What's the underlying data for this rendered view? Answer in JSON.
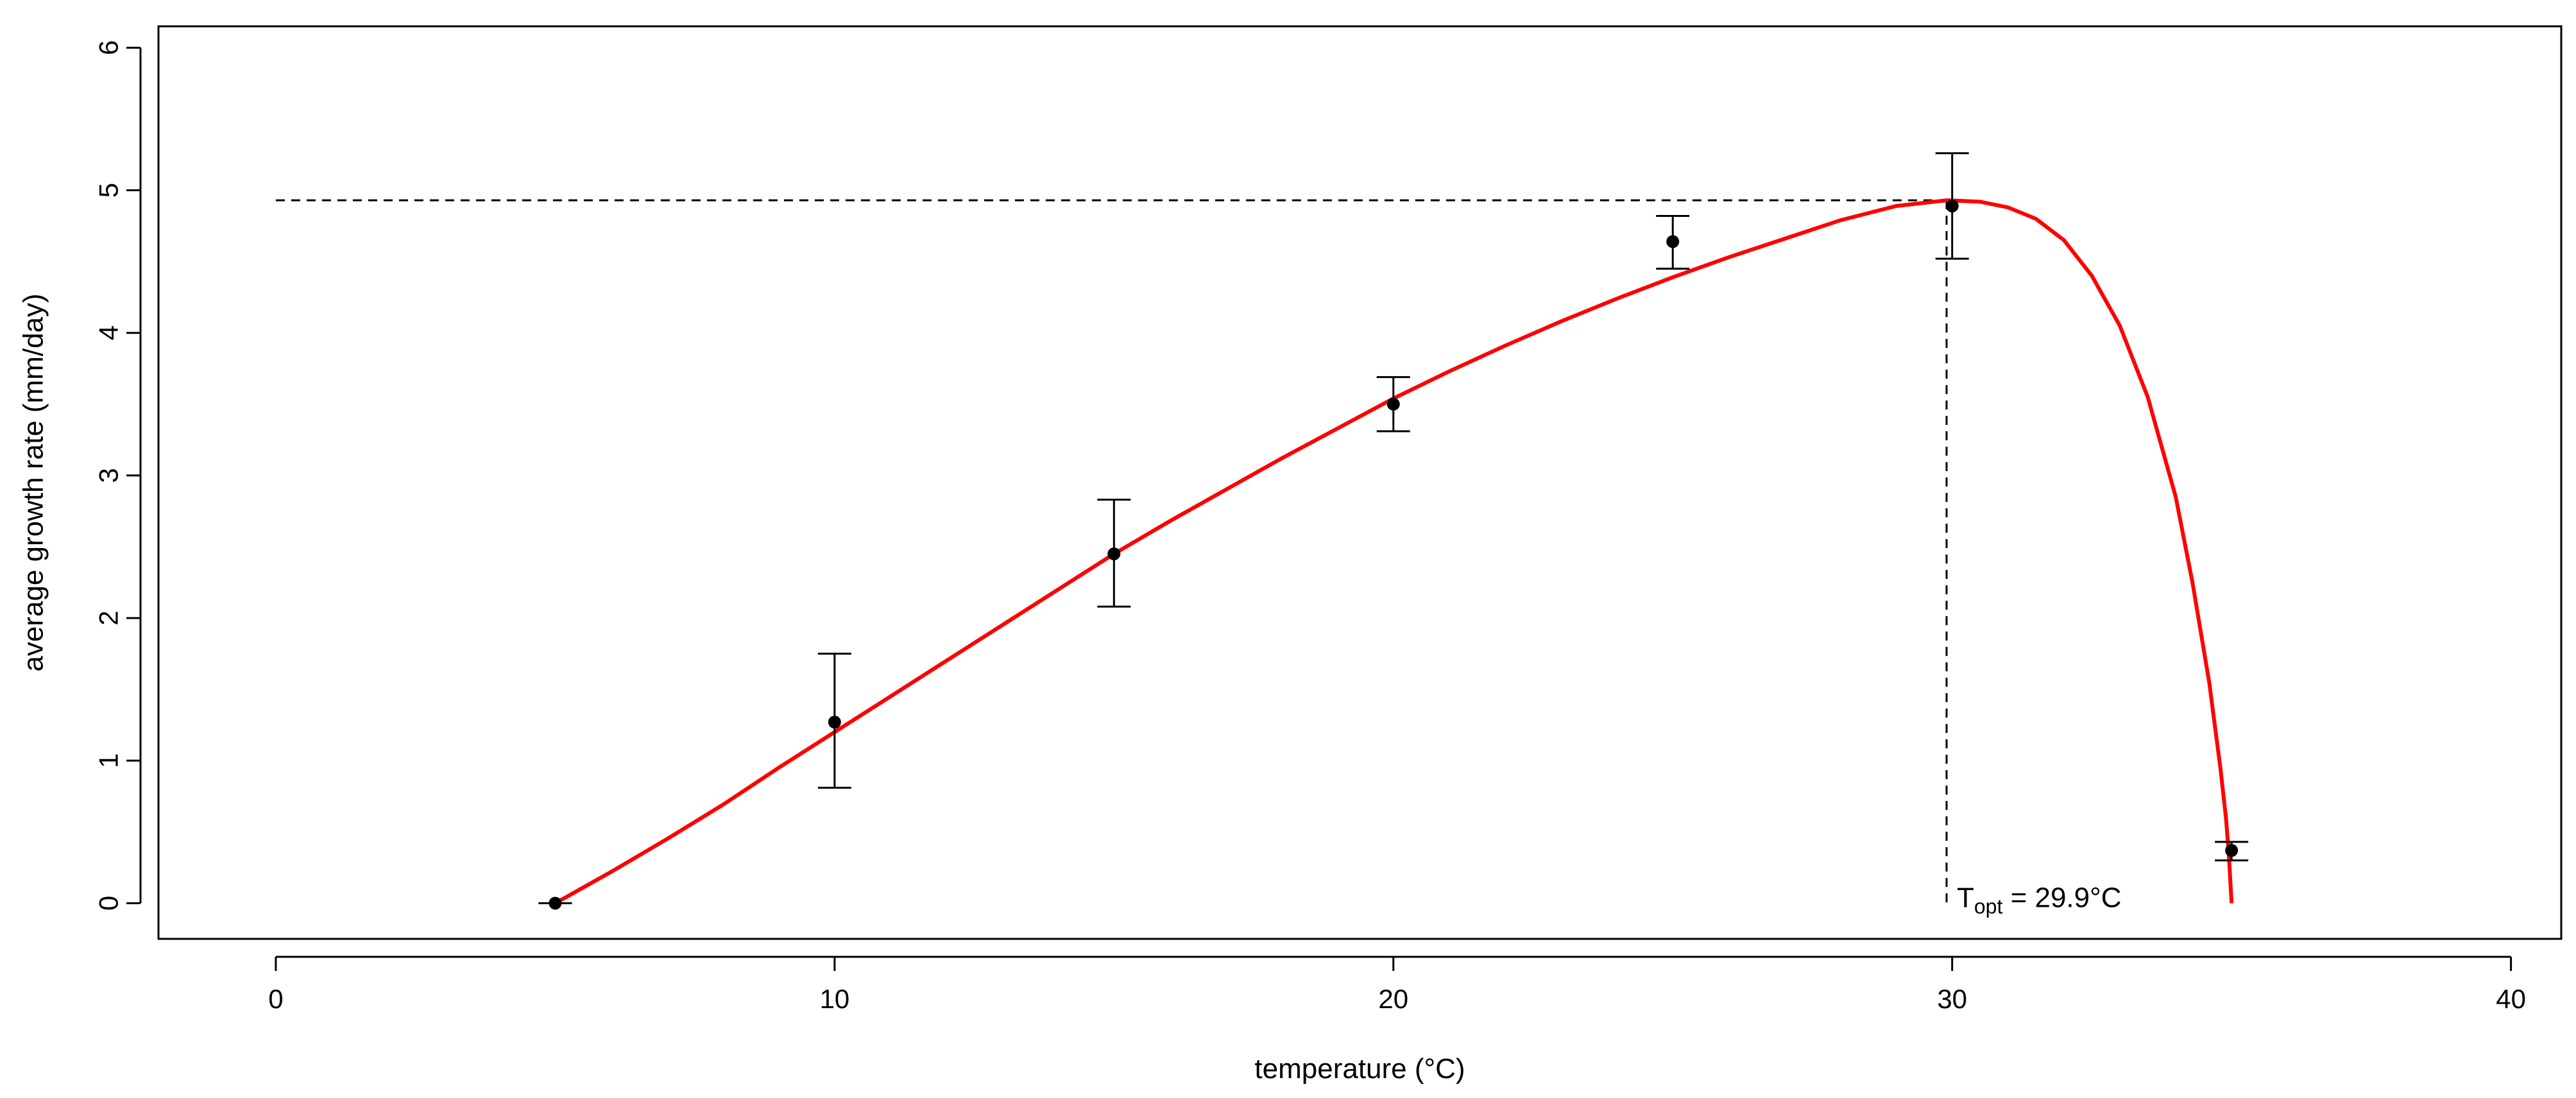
{
  "chart_data": {
    "type": "scatter",
    "xlabel": "temperature (°C)",
    "ylabel": "average growth rate (mm/day)",
    "xlim": [
      -2.1,
      40.9
    ],
    "ylim": [
      -0.25,
      6.15
    ],
    "x_ticks": [
      0,
      10,
      20,
      30,
      40
    ],
    "y_ticks": [
      0,
      1,
      2,
      3,
      4,
      5,
      6
    ],
    "grid": false,
    "points": [
      {
        "x": 5,
        "y": 0.0,
        "lower": 0.0,
        "upper": 0.0
      },
      {
        "x": 10,
        "y": 1.27,
        "lower": 0.81,
        "upper": 1.75
      },
      {
        "x": 15,
        "y": 2.45,
        "lower": 2.08,
        "upper": 2.83
      },
      {
        "x": 20,
        "y": 3.5,
        "lower": 3.31,
        "upper": 3.69
      },
      {
        "x": 25,
        "y": 4.64,
        "lower": 4.45,
        "upper": 4.82
      },
      {
        "x": 30,
        "y": 4.89,
        "lower": 4.52,
        "upper": 5.26
      },
      {
        "x": 35,
        "y": 0.37,
        "lower": 0.3,
        "upper": 0.43
      }
    ],
    "fit_curve": {
      "color": "#ff0000",
      "x": [
        5,
        6,
        7,
        8,
        9,
        10,
        11,
        12,
        13,
        14,
        15,
        16,
        17,
        18,
        19,
        20,
        21,
        22,
        23,
        24,
        25,
        26,
        27,
        28,
        29,
        29.9,
        30.5,
        31,
        31.5,
        32,
        32.5,
        33,
        33.5,
        34,
        34.3,
        34.6,
        34.8,
        34.9,
        34.95,
        35
      ],
      "y": [
        0.0,
        0.22,
        0.45,
        0.69,
        0.95,
        1.2,
        1.45,
        1.7,
        1.95,
        2.2,
        2.45,
        2.68,
        2.9,
        3.12,
        3.33,
        3.54,
        3.73,
        3.91,
        4.08,
        4.24,
        4.39,
        4.53,
        4.66,
        4.79,
        4.89,
        4.93,
        4.92,
        4.88,
        4.8,
        4.65,
        4.4,
        4.05,
        3.55,
        2.85,
        2.25,
        1.55,
        0.95,
        0.6,
        0.35,
        0.0
      ]
    },
    "optimum": {
      "x": 29.9,
      "y": 4.93,
      "label_main": "T",
      "label_sub": "opt",
      "label_rest": " = 29.9°C"
    }
  }
}
